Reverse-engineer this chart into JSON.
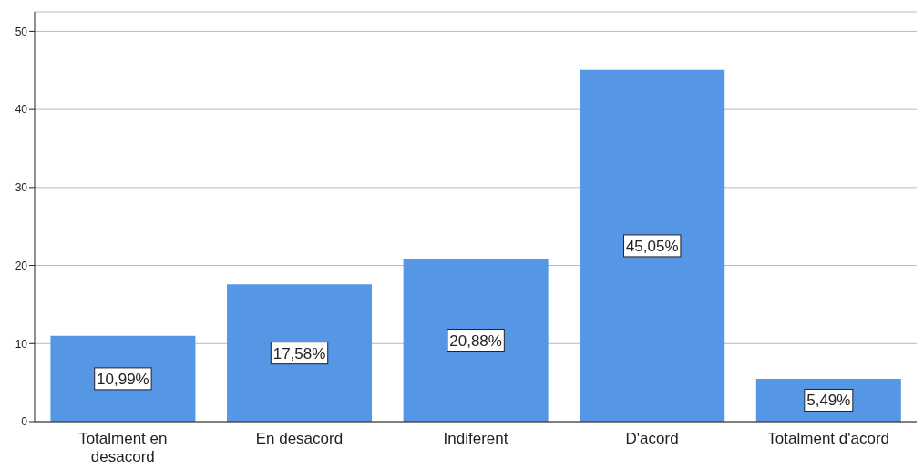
{
  "chart_data": {
    "type": "bar",
    "categories": [
      "Totalment en desacord",
      "En desacord",
      "Indiferent",
      "D'acord",
      "Totalment d'acord"
    ],
    "values": [
      10.99,
      17.58,
      20.88,
      45.05,
      5.49
    ],
    "color": "#5597e4",
    "value_labels": [
      "10,99%",
      "17,58%",
      "20,88%",
      "45,05%",
      "5,49%"
    ],
    "ylim": [
      0,
      52.5
    ],
    "yticks": [
      0,
      10,
      20,
      30,
      40,
      50
    ],
    "grid": "y"
  }
}
